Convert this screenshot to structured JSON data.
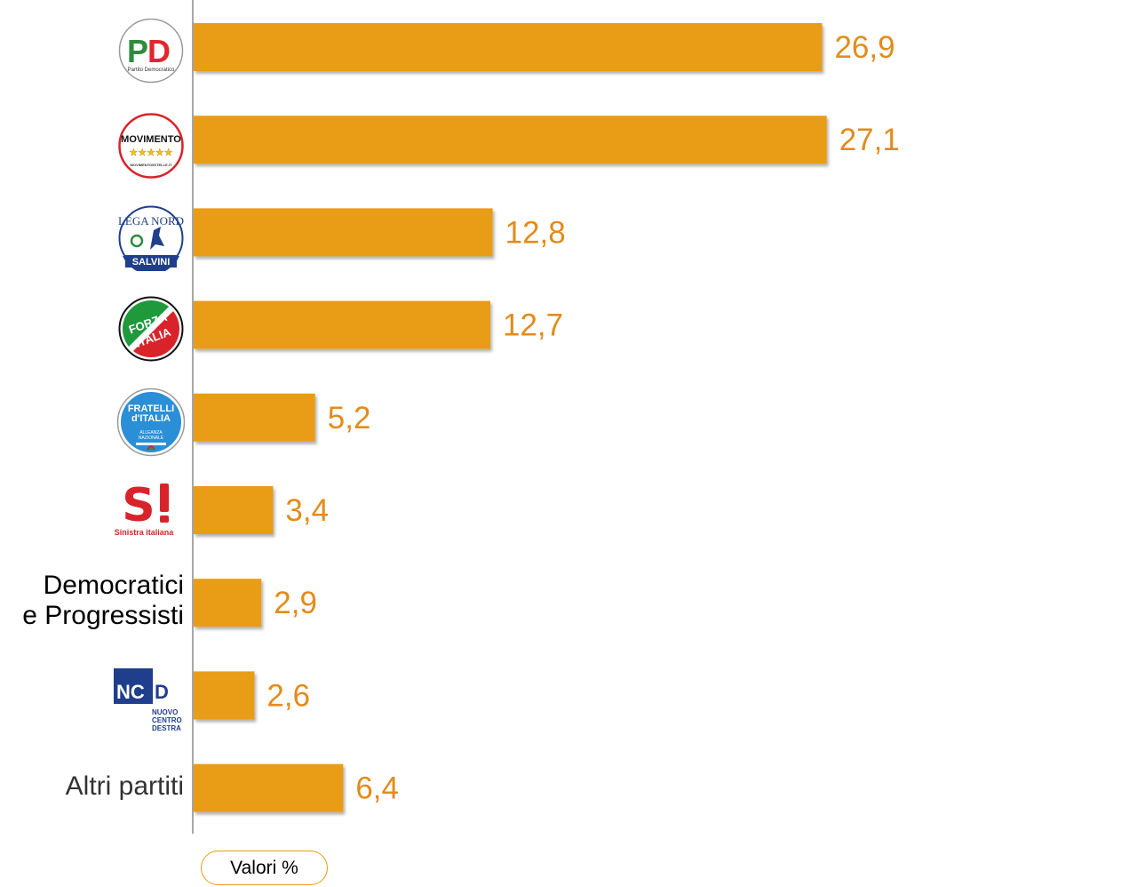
{
  "chart_data": {
    "type": "bar",
    "orientation": "horizontal",
    "categories": [
      "PD",
      "Movimento 5 Stelle",
      "Lega Nord Salvini",
      "Forza Italia",
      "Fratelli d'Italia",
      "Sinistra Italiana",
      "Democratici e Progressisti",
      "NCD",
      "Altri partiti"
    ],
    "values": [
      26.9,
      27.1,
      12.8,
      12.7,
      5.2,
      3.4,
      2.9,
      2.6,
      6.4
    ],
    "value_labels": [
      "26,9",
      "27,1",
      "12,8",
      "12,7",
      "5,2",
      "3,4",
      "2,9",
      "2,6",
      "6,4"
    ],
    "grid": false,
    "bar_color": "#E99C12",
    "label_color": "#E38B1B"
  },
  "labels": {
    "dp_line1": "Democratici",
    "dp_line2": "e Progressisti",
    "altri": "Altri partiti"
  },
  "logos": {
    "pd": {
      "letters": "PD",
      "text": "Partito Democratico"
    },
    "m5s": {
      "text": "MOVIMENTO",
      "url": "MOVIMENTO5STELLE.IT"
    },
    "lega": {
      "top": "LEGA NORD",
      "bottom": "SALVINI"
    },
    "fi": {
      "line1": "FORZA",
      "line2": "ITALIA"
    },
    "fdi": {
      "line1": "FRATELLI",
      "line2": "d'ITALIA",
      "line3": "ALLEANZA",
      "line4": "NAZIONALE"
    },
    "si": {
      "letters": "SI",
      "text": "Sinistra italiana"
    },
    "ncd": {
      "letters": "NCD",
      "line1": "NUOVO",
      "line2": "CENTRO",
      "line3": "DESTRA"
    }
  },
  "footer": {
    "unit_label": "Valori %"
  }
}
